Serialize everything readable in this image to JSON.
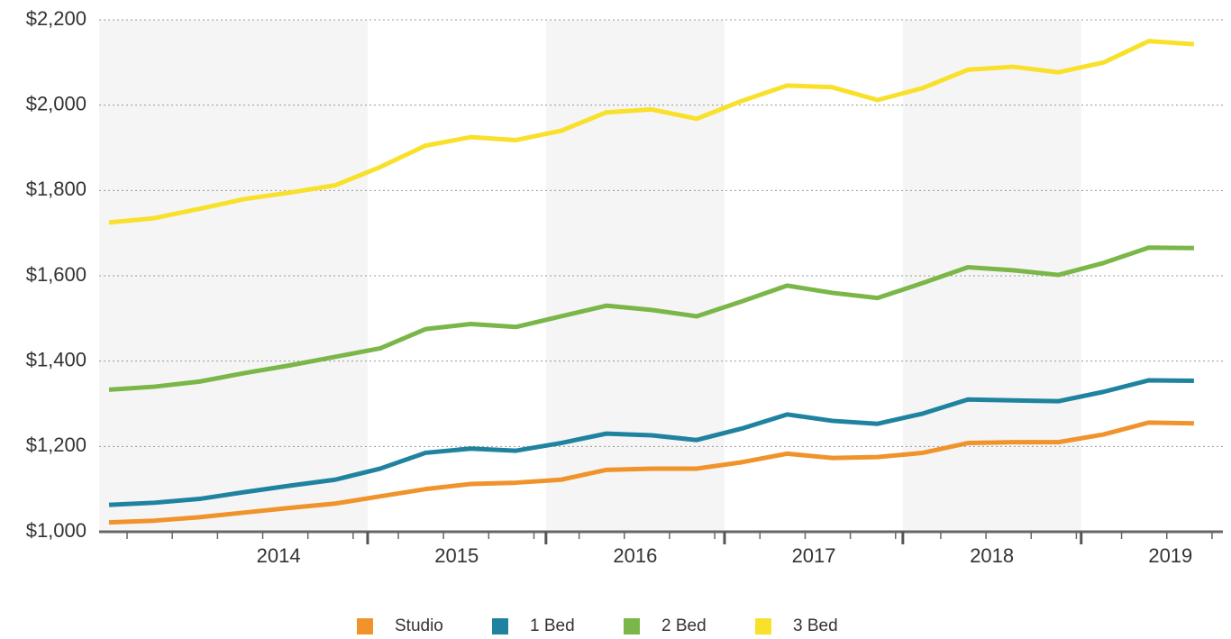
{
  "chart_data": {
    "type": "line",
    "categories": [
      null,
      null,
      null,
      null,
      null,
      null,
      null,
      null,
      null,
      null,
      null,
      null,
      null,
      null,
      null,
      null,
      null,
      null,
      null,
      null,
      null,
      null,
      null,
      null,
      null
    ],
    "series": [
      {
        "name": "Studio",
        "color": "#f0932b",
        "values": [
          1022,
          1026,
          1034,
          1045,
          1056,
          1066,
          1083,
          1100,
          1112,
          1115,
          1122,
          1145,
          1148,
          1148,
          1163,
          1183,
          1173,
          1175,
          1185,
          1208,
          1210,
          1210,
          1228,
          1256,
          1254
        ]
      },
      {
        "name": "1 Bed",
        "color": "#1f83a0",
        "values": [
          1063,
          1068,
          1077,
          1093,
          1108,
          1122,
          1148,
          1185,
          1195,
          1190,
          1208,
          1230,
          1226,
          1215,
          1242,
          1275,
          1260,
          1253,
          1277,
          1310,
          1308,
          1306,
          1328,
          1355,
          1354
        ]
      },
      {
        "name": "2 Bed",
        "color": "#7ab648",
        "values": [
          1333,
          1340,
          1352,
          1372,
          1390,
          1410,
          1430,
          1475,
          1487,
          1480,
          1505,
          1530,
          1520,
          1505,
          1540,
          1577,
          1560,
          1548,
          1583,
          1620,
          1613,
          1602,
          1630,
          1666,
          1665
        ]
      },
      {
        "name": "3 Bed",
        "color": "#f8e02b",
        "values": [
          1725,
          1735,
          1757,
          1780,
          1795,
          1812,
          1855,
          1905,
          1925,
          1918,
          1940,
          1983,
          1990,
          1968,
          2010,
          2046,
          2042,
          2012,
          2040,
          2083,
          2090,
          2077,
          2100,
          2150,
          2143
        ]
      }
    ],
    "xlim": [
      -0.22,
      24.64
    ],
    "xticks": [
      {
        "value": 3.75,
        "label": "2014"
      },
      {
        "value": 7.69,
        "label": "2015"
      },
      {
        "value": 11.64,
        "label": "2016"
      },
      {
        "value": 15.59,
        "label": "2017"
      },
      {
        "value": 19.53,
        "label": "2018"
      },
      {
        "value": 23.48,
        "label": "2019"
      }
    ],
    "ylim": [
      1000,
      2200
    ],
    "yticks": [
      {
        "value": 1000,
        "label": "$1,000"
      },
      {
        "value": 1200,
        "label": "$1,200"
      },
      {
        "value": 1400,
        "label": "$1,400"
      },
      {
        "value": 1600,
        "label": "$1,600"
      },
      {
        "value": 1800,
        "label": "$1,800"
      },
      {
        "value": 2000,
        "label": "$2,000"
      },
      {
        "value": 2200,
        "label": "$2,200"
      }
    ],
    "grid": true,
    "legend": "bottom"
  }
}
